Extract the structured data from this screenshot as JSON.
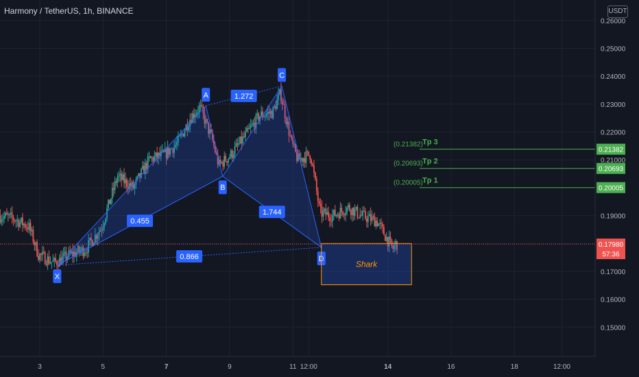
{
  "header": {
    "title": "Harmony / TetherUS, 1h, BINANCE",
    "currency_badge": "USDT"
  },
  "colors": {
    "background": "#131722",
    "grid": "#1f2330",
    "up": "#26a69a",
    "down": "#ef5350",
    "pattern_fill": "#2962ff",
    "pattern_label": "#2962ff",
    "target_line": "#4caf50",
    "zone_border": "#ff9800",
    "price_line": "#ef5350"
  },
  "chart_data": {
    "type": "candlestick",
    "ylim": [
      0.14,
      0.26
    ],
    "y_ticks": [
      "0.15000",
      "0.16000",
      "0.17000",
      "0.18000",
      "0.19000",
      "0.20000",
      "0.21000",
      "0.22000",
      "0.23000",
      "0.24000",
      "0.25000",
      "0.26000"
    ],
    "x_ticks": [
      {
        "label": "3",
        "day": 3
      },
      {
        "label": "5",
        "day": 5
      },
      {
        "label": "7",
        "day": 7,
        "bold": true
      },
      {
        "label": "9",
        "day": 9
      },
      {
        "label": "11",
        "day": 11
      },
      {
        "label": "12:00",
        "day": 11.5
      },
      {
        "label": "14",
        "day": 14,
        "bold": true
      },
      {
        "label": "16",
        "day": 16
      },
      {
        "label": "18",
        "day": 18
      },
      {
        "label": "12:00",
        "day": 19.5
      }
    ],
    "path": [
      [
        1.75,
        0.19
      ],
      [
        2.2,
        0.189
      ],
      [
        2.7,
        0.186
      ],
      [
        3.0,
        0.176
      ],
      [
        3.5,
        0.173
      ],
      [
        4.0,
        0.176
      ],
      [
        4.5,
        0.178
      ],
      [
        5.0,
        0.186
      ],
      [
        5.5,
        0.204
      ],
      [
        6.0,
        0.2
      ],
      [
        6.5,
        0.21
      ],
      [
        7.0,
        0.212
      ],
      [
        7.4,
        0.216
      ],
      [
        7.8,
        0.225
      ],
      [
        8.1,
        0.229
      ],
      [
        8.5,
        0.217
      ],
      [
        8.7,
        0.208
      ],
      [
        9.1,
        0.212
      ],
      [
        9.5,
        0.218
      ],
      [
        10.0,
        0.226
      ],
      [
        10.4,
        0.227
      ],
      [
        10.65,
        0.234
      ],
      [
        11.0,
        0.216
      ],
      [
        11.2,
        0.21
      ],
      [
        11.6,
        0.212
      ],
      [
        11.9,
        0.191
      ],
      [
        12.3,
        0.19
      ],
      [
        12.8,
        0.193
      ],
      [
        13.2,
        0.19
      ],
      [
        13.7,
        0.188
      ],
      [
        14.0,
        0.182
      ],
      [
        14.2,
        0.178
      ],
      [
        14.3,
        0.18
      ]
    ],
    "pattern": {
      "name": "Shark",
      "points": [
        {
          "label": "X",
          "day": 3.55,
          "price": 0.1722
        },
        {
          "label": "A",
          "day": 8.25,
          "price": 0.2294
        },
        {
          "label": "B",
          "day": 8.78,
          "price": 0.2041
        },
        {
          "label": "C",
          "day": 10.65,
          "price": 0.2365
        },
        {
          "label": "D",
          "day": 11.9,
          "price": 0.1786
        }
      ],
      "ratios": [
        {
          "label": "0.455",
          "between": [
            "X",
            "B"
          ]
        },
        {
          "label": "1.272",
          "between": [
            "A",
            "C"
          ]
        },
        {
          "label": "1.744",
          "between": [
            "B",
            "D"
          ]
        },
        {
          "label": "0.866",
          "between": [
            "X",
            "D"
          ]
        }
      ]
    },
    "zone": {
      "label": "Shark",
      "day_start": 11.9,
      "day_end": 14.75,
      "price_top": 0.18,
      "price_bottom": 0.1652
    },
    "targets": [
      {
        "name": "Tp 3",
        "value": 0.21382,
        "label": "(0.21382)",
        "axis_label": "0.21382"
      },
      {
        "name": "Tp 2",
        "value": 0.20693,
        "label": "(0.20693)",
        "axis_label": "0.20693"
      },
      {
        "name": "Tp 1",
        "value": 0.20005,
        "label": "(0.20005)",
        "axis_label": "0.20005"
      }
    ],
    "current_price": {
      "value": 0.1798,
      "label": "0.17980",
      "countdown": "57:36"
    }
  }
}
